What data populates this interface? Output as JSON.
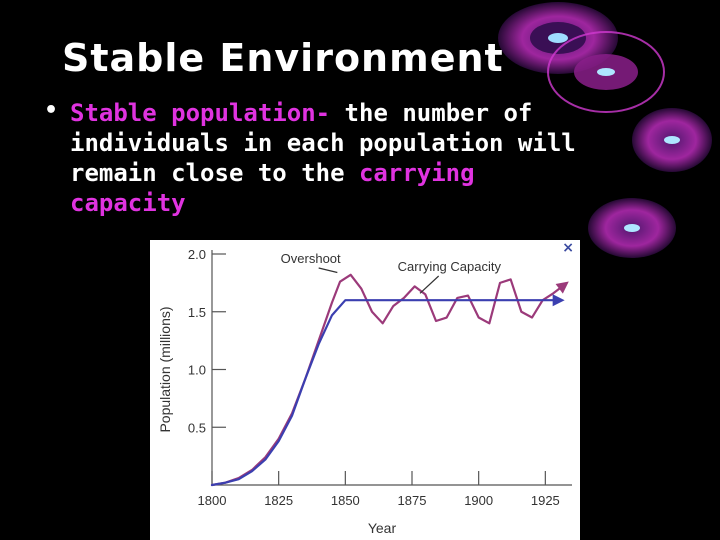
{
  "slide": {
    "title": "Stable Environment",
    "bullet": {
      "highlight": "Stable population-",
      "line1_rest": " the number of",
      "line2": "individuals in each population will",
      "line3_plain": "remain close to the ",
      "line3_highlight": "carrying",
      "line4_highlight": "capacity"
    }
  },
  "colors": {
    "background": "#000000",
    "title": "#ffffff",
    "text": "#ffffff",
    "accent": "#e033e0",
    "overshoot_series": "#9b3a7a",
    "capacity_series": "#3b3fb0"
  },
  "figure": {
    "close_icon": "×"
  },
  "chart_data": {
    "type": "line",
    "xlabel": "Year",
    "ylabel": "Population (millions)",
    "xlim": [
      1800,
      1935
    ],
    "ylim": [
      0,
      2.0
    ],
    "x_ticks": [
      "1800",
      "1825",
      "1850",
      "1875",
      "1900",
      "1925"
    ],
    "y_ticks": [
      "0.5",
      "1.0",
      "1.5",
      "2.0"
    ],
    "annotations": [
      "Overshoot",
      "Carrying Capacity"
    ],
    "series": [
      {
        "color": "#9b3a7a",
        "x": [
          1800,
          1805,
          1810,
          1815,
          1820,
          1825,
          1830,
          1835,
          1840,
          1845,
          1848,
          1852,
          1856,
          1860,
          1864,
          1868,
          1872,
          1876,
          1880,
          1884,
          1888,
          1892,
          1896,
          1900,
          1904,
          1908,
          1912,
          1916,
          1920,
          1924,
          1928,
          1932
        ],
        "y": [
          0.0,
          0.02,
          0.06,
          0.13,
          0.24,
          0.4,
          0.62,
          0.92,
          1.25,
          1.58,
          1.76,
          1.82,
          1.7,
          1.5,
          1.4,
          1.55,
          1.62,
          1.72,
          1.65,
          1.42,
          1.45,
          1.62,
          1.64,
          1.45,
          1.4,
          1.75,
          1.78,
          1.5,
          1.45,
          1.6,
          1.66,
          1.73
        ]
      },
      {
        "color": "#3b3fb0",
        "x": [
          1800,
          1805,
          1810,
          1815,
          1820,
          1825,
          1830,
          1835,
          1840,
          1845,
          1850,
          1855,
          1860,
          1870,
          1880,
          1890,
          1900,
          1910,
          1920,
          1930
        ],
        "y": [
          0.0,
          0.02,
          0.05,
          0.12,
          0.22,
          0.38,
          0.6,
          0.92,
          1.22,
          1.47,
          1.6,
          1.6,
          1.6,
          1.6,
          1.6,
          1.6,
          1.6,
          1.6,
          1.6,
          1.6
        ]
      }
    ]
  }
}
